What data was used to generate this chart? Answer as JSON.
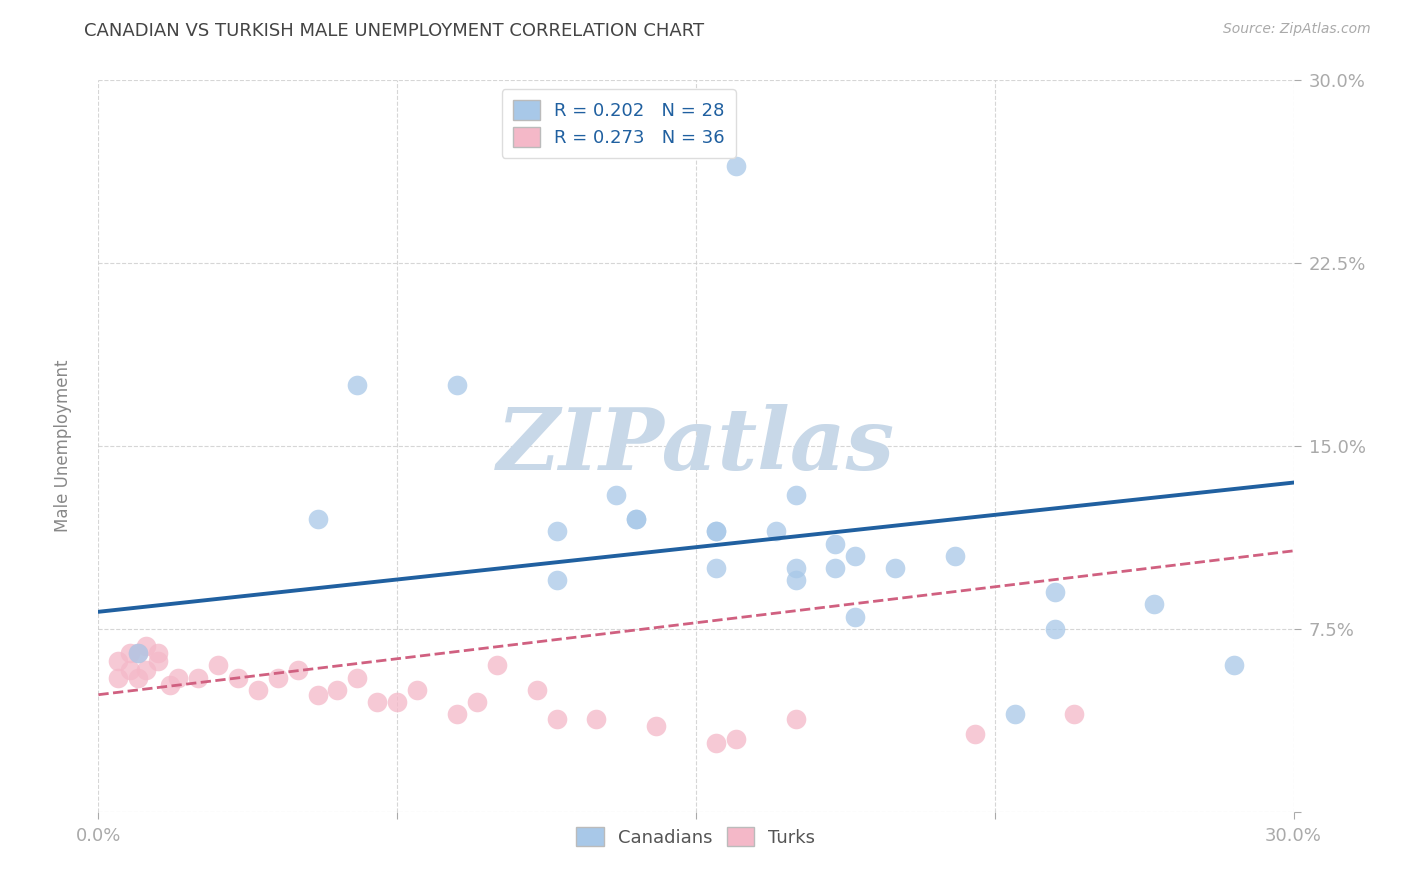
{
  "title": "CANADIAN VS TURKISH MALE UNEMPLOYMENT CORRELATION CHART",
  "source": "Source: ZipAtlas.com",
  "ylabel": "Male Unemployment",
  "xlim": [
    0.0,
    0.3
  ],
  "ylim": [
    0.0,
    0.3
  ],
  "xticks": [
    0.0,
    0.075,
    0.15,
    0.225,
    0.3
  ],
  "xtick_labels": [
    "0.0%",
    "",
    "",
    "",
    "30.0%"
  ],
  "yticks": [
    0.0,
    0.075,
    0.15,
    0.225,
    0.3
  ],
  "ytick_labels": [
    "",
    "7.5%",
    "15.0%",
    "22.5%",
    "30.0%"
  ],
  "grid_color": "#cccccc",
  "background_color": "#ffffff",
  "title_color": "#555555",
  "legend_R_blue": "0.202",
  "legend_N_blue": "28",
  "legend_R_pink": "0.273",
  "legend_N_pink": "36",
  "blue_scatter_x": [
    0.16,
    0.065,
    0.09,
    0.055,
    0.115,
    0.135,
    0.155,
    0.175,
    0.19,
    0.185,
    0.215,
    0.24,
    0.19,
    0.185,
    0.24,
    0.265,
    0.285,
    0.23,
    0.17,
    0.175,
    0.115,
    0.175,
    0.135,
    0.155,
    0.2,
    0.155,
    0.13,
    0.01
  ],
  "blue_scatter_y": [
    0.265,
    0.175,
    0.175,
    0.12,
    0.115,
    0.12,
    0.115,
    0.1,
    0.105,
    0.11,
    0.105,
    0.09,
    0.08,
    0.1,
    0.075,
    0.085,
    0.06,
    0.04,
    0.115,
    0.13,
    0.095,
    0.095,
    0.12,
    0.115,
    0.1,
    0.1,
    0.13,
    0.065
  ],
  "pink_scatter_x": [
    0.005,
    0.008,
    0.01,
    0.012,
    0.015,
    0.005,
    0.008,
    0.01,
    0.012,
    0.015,
    0.018,
    0.02,
    0.025,
    0.03,
    0.035,
    0.04,
    0.045,
    0.05,
    0.055,
    0.06,
    0.065,
    0.07,
    0.075,
    0.08,
    0.09,
    0.095,
    0.1,
    0.11,
    0.115,
    0.125,
    0.14,
    0.155,
    0.16,
    0.175,
    0.22,
    0.245
  ],
  "pink_scatter_y": [
    0.062,
    0.065,
    0.065,
    0.068,
    0.065,
    0.055,
    0.058,
    0.055,
    0.058,
    0.062,
    0.052,
    0.055,
    0.055,
    0.06,
    0.055,
    0.05,
    0.055,
    0.058,
    0.048,
    0.05,
    0.055,
    0.045,
    0.045,
    0.05,
    0.04,
    0.045,
    0.06,
    0.05,
    0.038,
    0.038,
    0.035,
    0.028,
    0.03,
    0.038,
    0.032,
    0.04
  ],
  "blue_line_x": [
    0.0,
    0.3
  ],
  "blue_line_y": [
    0.082,
    0.135
  ],
  "pink_line_x": [
    0.0,
    0.3
  ],
  "pink_line_y": [
    0.048,
    0.107
  ],
  "blue_color": "#a8c8e8",
  "pink_color": "#f4b8c8",
  "blue_line_color": "#2060a0",
  "pink_line_color": "#d06080",
  "label_color": "#4472c4",
  "ytick_color": "#4472c4",
  "watermark_text": "ZIPatlas",
  "watermark_color": "#c8d8e8"
}
